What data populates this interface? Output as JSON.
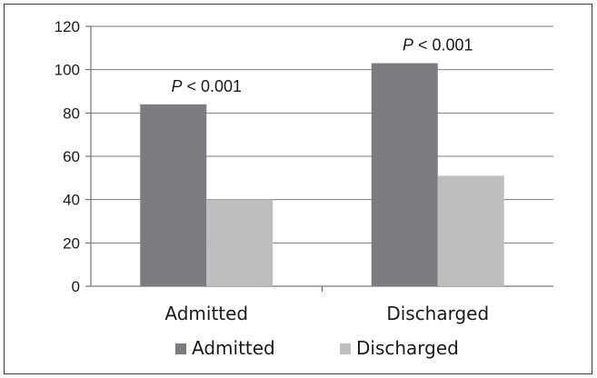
{
  "chart_data": {
    "type": "bar",
    "categories": [
      "Admitted",
      "Discharged"
    ],
    "series": [
      {
        "name": "Admitted",
        "values": [
          84,
          103
        ],
        "color": "#7c7c80"
      },
      {
        "name": "Discharged",
        "values": [
          40,
          51
        ],
        "color": "#bdbec0"
      }
    ],
    "ylim": [
      0,
      120
    ],
    "yticks": [
      0,
      20,
      40,
      60,
      80,
      100,
      120
    ],
    "grid": true,
    "legend": "bottom",
    "annotations": [
      {
        "category": "Admitted",
        "p_symbol": "P",
        "text": " < 0.001"
      },
      {
        "category": "Discharged",
        "p_symbol": "P",
        "text": " < 0.001"
      }
    ],
    "title": "",
    "xlabel": "",
    "ylabel": ""
  }
}
